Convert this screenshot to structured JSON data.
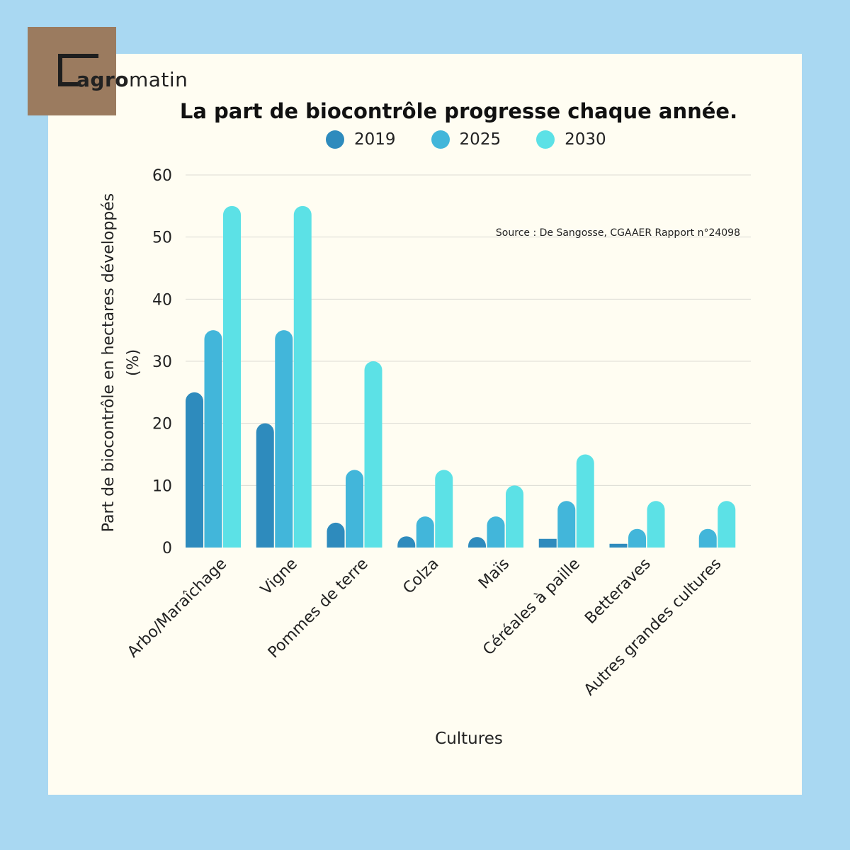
{
  "brand": {
    "name_bold": "agro",
    "name_light": "matin",
    "box_color": "#9b7b5f"
  },
  "colors": {
    "background": "#a9d8f2",
    "card": "#fffdf2",
    "series": [
      "#2e8bbd",
      "#42b6da",
      "#5ce1e6"
    ]
  },
  "chart_data": {
    "type": "bar",
    "title": "La part de biocontrôle progresse chaque année.",
    "xlabel": "Cultures",
    "ylabel": "Part de biocontrôle en hectares développés (%)",
    "ylabel_lines": [
      "Part de biocontrôle en hectares développés",
      "(%)"
    ],
    "ylim": [
      0,
      60
    ],
    "yticks": [
      0,
      10,
      20,
      30,
      40,
      50,
      60
    ],
    "grid": true,
    "legend_position": "top-center",
    "annotation": "Source : De Sangosse, CGAAER Rapport n°24098",
    "categories": [
      "Arbo/Maraîchage",
      "Vigne",
      "Pommes de terre",
      "Colza",
      "Maïs",
      "Céréales à paille",
      "Betteraves",
      "Autres grandes cultures"
    ],
    "series": [
      {
        "name": "2019",
        "values": [
          25,
          20,
          4,
          1.8,
          1.7,
          1.4,
          0.6,
          0
        ]
      },
      {
        "name": "2025",
        "values": [
          35,
          35,
          12.5,
          5,
          5,
          7.5,
          3,
          3
        ]
      },
      {
        "name": "2030",
        "values": [
          55,
          55,
          30,
          12.5,
          10,
          15,
          7.5,
          7.5
        ]
      }
    ]
  }
}
